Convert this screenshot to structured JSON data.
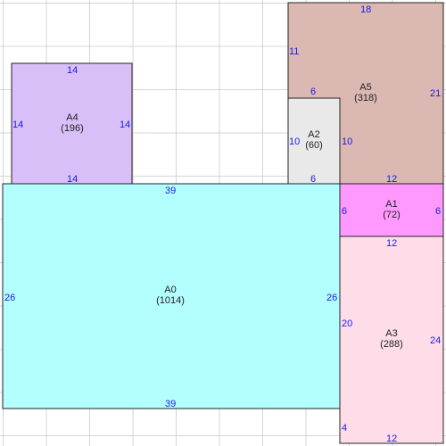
{
  "colors": {
    "grid": "#d4d4d4",
    "border": "#222222",
    "dimension_text": "#1a1ae6"
  },
  "rectangles": [
    {
      "id": "A0",
      "area": "(1014)",
      "fill": "#b3ffff",
      "dims": {
        "top": "39",
        "bottom": "39",
        "left": "26",
        "right": "26"
      }
    },
    {
      "id": "A1",
      "area": "(72)",
      "fill": "#ff99ff",
      "dims": {
        "top": "12",
        "bottom": "12",
        "left": "6",
        "right": "6"
      }
    },
    {
      "id": "A2",
      "area": "(60)",
      "fill": "#e9e9e9",
      "dims": {
        "top": "6",
        "bottom": "6",
        "left": "10",
        "right": "10"
      }
    },
    {
      "id": "A3",
      "area": "(288)",
      "fill": "#ffdde8",
      "dims": {
        "top": "12",
        "bottom": "12",
        "left": "20",
        "left2": "4",
        "right": "24"
      }
    },
    {
      "id": "A4",
      "area": "(196)",
      "fill": "#d9bff7",
      "dims": {
        "top": "14",
        "bottom": "14",
        "left": "14",
        "right": "14"
      }
    },
    {
      "id": "A5",
      "area": "(318)",
      "fill": "#dcb8b3",
      "dims": {
        "top": "18",
        "bottom": "12",
        "left": "11",
        "left2": "6",
        "right": "21"
      }
    }
  ]
}
